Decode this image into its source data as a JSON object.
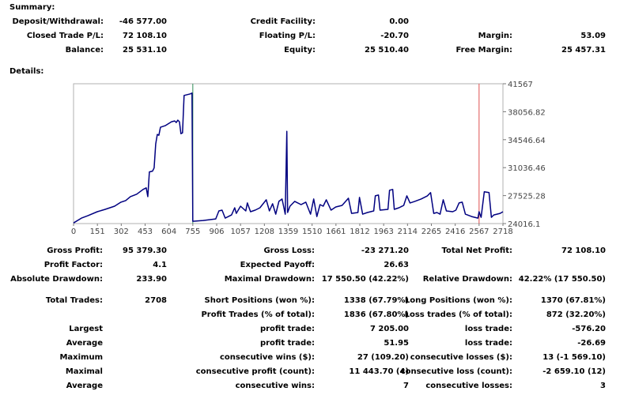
{
  "summary": {
    "heading": "Summary:",
    "deposit_label": "Deposit/Withdrawal:",
    "deposit_value": "-46 577.00",
    "credit_label": "Credit Facility:",
    "credit_value": "0.00",
    "closed_label": "Closed Trade P/L:",
    "closed_value": "72 108.10",
    "floating_label": "Floating P/L:",
    "floating_value": "-20.70",
    "margin_label": "Margin:",
    "margin_value": "53.09",
    "balance_label": "Balance:",
    "balance_value": "25 531.10",
    "equity_label": "Equity:",
    "equity_value": "25 510.40",
    "free_margin_label": "Free Margin:",
    "free_margin_value": "25 457.31"
  },
  "details": {
    "heading": "Details:"
  },
  "chart_data": {
    "type": "line",
    "x_ticks": [
      "0",
      "151",
      "302",
      "453",
      "604",
      "755",
      "906",
      "1057",
      "1208",
      "1359",
      "1510",
      "1661",
      "1812",
      "1963",
      "2114",
      "2265",
      "2416",
      "2567",
      "2718"
    ],
    "y_ticks": [
      "41567",
      "38056.82",
      "34546.64",
      "31036.46",
      "27525.28",
      "24016.1"
    ],
    "ylim": [
      24016.1,
      41567
    ],
    "xlim": [
      0,
      2718
    ],
    "marker_x": [
      755,
      2567
    ],
    "series": [
      {
        "color": "#000080",
        "points": [
          [
            0,
            24100
          ],
          [
            50,
            24700
          ],
          [
            90,
            25000
          ],
          [
            150,
            25500
          ],
          [
            200,
            25800
          ],
          [
            260,
            26200
          ],
          [
            300,
            26700
          ],
          [
            330,
            26900
          ],
          [
            360,
            27400
          ],
          [
            400,
            27700
          ],
          [
            440,
            28300
          ],
          [
            460,
            28500
          ],
          [
            470,
            27400
          ],
          [
            480,
            30500
          ],
          [
            500,
            30600
          ],
          [
            510,
            31000
          ],
          [
            520,
            34000
          ],
          [
            530,
            35200
          ],
          [
            540,
            35100
          ],
          [
            550,
            36100
          ],
          [
            580,
            36300
          ],
          [
            620,
            36800
          ],
          [
            640,
            36900
          ],
          [
            650,
            36700
          ],
          [
            660,
            37000
          ],
          [
            670,
            36800
          ],
          [
            680,
            35300
          ],
          [
            690,
            35400
          ],
          [
            700,
            40100
          ],
          [
            720,
            40200
          ],
          [
            740,
            40300
          ],
          [
            750,
            40400
          ],
          [
            755,
            24300
          ],
          [
            820,
            24400
          ],
          [
            900,
            24600
          ],
          [
            920,
            25600
          ],
          [
            940,
            25700
          ],
          [
            960,
            24700
          ],
          [
            1000,
            25100
          ],
          [
            1020,
            26000
          ],
          [
            1030,
            25300
          ],
          [
            1057,
            26200
          ],
          [
            1090,
            25600
          ],
          [
            1100,
            26600
          ],
          [
            1120,
            25500
          ],
          [
            1150,
            25700
          ],
          [
            1180,
            26000
          ],
          [
            1220,
            27000
          ],
          [
            1240,
            25600
          ],
          [
            1260,
            26500
          ],
          [
            1280,
            25200
          ],
          [
            1300,
            26800
          ],
          [
            1320,
            27100
          ],
          [
            1340,
            25200
          ],
          [
            1350,
            35600
          ],
          [
            1355,
            25400
          ],
          [
            1370,
            26200
          ],
          [
            1400,
            26800
          ],
          [
            1440,
            26400
          ],
          [
            1470,
            26700
          ],
          [
            1500,
            25200
          ],
          [
            1520,
            27100
          ],
          [
            1540,
            24900
          ],
          [
            1560,
            26400
          ],
          [
            1580,
            26200
          ],
          [
            1600,
            27000
          ],
          [
            1630,
            25700
          ],
          [
            1660,
            26100
          ],
          [
            1700,
            26300
          ],
          [
            1740,
            27200
          ],
          [
            1760,
            25300
          ],
          [
            1800,
            25400
          ],
          [
            1810,
            27300
          ],
          [
            1830,
            25200
          ],
          [
            1860,
            25400
          ],
          [
            1900,
            25600
          ],
          [
            1910,
            27500
          ],
          [
            1930,
            27600
          ],
          [
            1940,
            25700
          ],
          [
            1990,
            25800
          ],
          [
            2000,
            28200
          ],
          [
            2020,
            28300
          ],
          [
            2030,
            25800
          ],
          [
            2060,
            26000
          ],
          [
            2090,
            26300
          ],
          [
            2110,
            27500
          ],
          [
            2130,
            26600
          ],
          [
            2160,
            26800
          ],
          [
            2200,
            27100
          ],
          [
            2240,
            27500
          ],
          [
            2260,
            27900
          ],
          [
            2280,
            25300
          ],
          [
            2300,
            25400
          ],
          [
            2320,
            25200
          ],
          [
            2340,
            27000
          ],
          [
            2360,
            25600
          ],
          [
            2400,
            25500
          ],
          [
            2420,
            25700
          ],
          [
            2440,
            26600
          ],
          [
            2460,
            26700
          ],
          [
            2480,
            25200
          ],
          [
            2520,
            24900
          ],
          [
            2560,
            24700
          ],
          [
            2567,
            25500
          ],
          [
            2580,
            24800
          ],
          [
            2600,
            28000
          ],
          [
            2630,
            27900
          ],
          [
            2645,
            24800
          ],
          [
            2660,
            25100
          ],
          [
            2700,
            25300
          ],
          [
            2718,
            25500
          ]
        ]
      }
    ]
  },
  "stats": {
    "row1": {
      "l1": "Gross Profit:",
      "v1": "95 379.30",
      "l2": "Gross Loss:",
      "v2": "-23 271.20",
      "l3": "Total Net Profit:",
      "v3": "72 108.10"
    },
    "row2": {
      "l1": "Profit Factor:",
      "v1": "4.1",
      "l2": "Expected Payoff:",
      "v2": "26.63"
    },
    "row3": {
      "l1": "Absolute Drawdown:",
      "v1": "233.90",
      "l2": "Maximal Drawdown:",
      "v2": "17 550.50 (42.22%)",
      "l3": "Relative Drawdown:",
      "v3": "42.22% (17 550.50)"
    },
    "row4": {
      "l1": "Total Trades:",
      "v1": "2708",
      "l2": "Short Positions (won %):",
      "v2": "1338 (67.79%)",
      "l3": "Long Positions (won %):",
      "v3": "1370 (67.81%)"
    },
    "row5": {
      "l2": "Profit Trades (% of total):",
      "v2": "1836 (67.80%)",
      "l3": "Loss trades (% of total):",
      "v3": "872 (32.20%)"
    },
    "row6": {
      "l1": "Largest",
      "l2": "profit trade:",
      "v2": "7 205.00",
      "l3": "loss trade:",
      "v3": "-576.20"
    },
    "row7": {
      "l1": "Average",
      "l2": "profit trade:",
      "v2": "51.95",
      "l3": "loss trade:",
      "v3": "-26.69"
    },
    "row8": {
      "l1": "Maximum",
      "l2": "consecutive wins ($):",
      "v2": "27 (109.20)",
      "l3": "consecutive losses ($):",
      "v3": "13 (-1 569.10)"
    },
    "row9": {
      "l1": "Maximal",
      "l2": "consecutive profit (count):",
      "v2": "11 443.70 (4)",
      "l3": "consecutive loss (count):",
      "v3": "-2 659.10 (12)"
    },
    "row10": {
      "l1": "Average",
      "l2": "consecutive wins:",
      "v2": "7",
      "l3": "consecutive losses:",
      "v3": "3"
    }
  }
}
